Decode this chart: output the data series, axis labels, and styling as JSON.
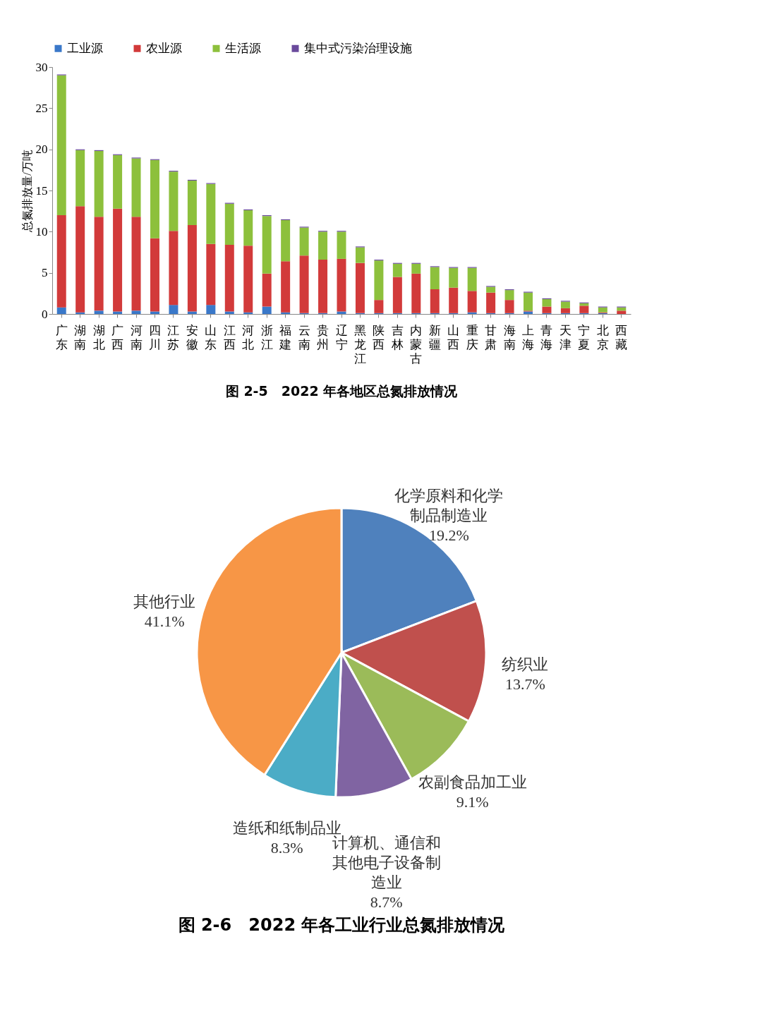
{
  "chart_data": [
    {
      "type": "bar",
      "title": "图 2-5　2022 年各地区总氮排放情况",
      "ylabel": "总氮排放量/万吨",
      "categories": [
        "广东",
        "湖南",
        "湖北",
        "广西",
        "河南",
        "四川",
        "江苏",
        "安徽",
        "山东",
        "江西",
        "河北",
        "浙江",
        "福建",
        "云南",
        "贵州",
        "辽宁",
        "黑龙江",
        "陕西",
        "吉林",
        "内蒙古",
        "新疆",
        "山西",
        "重庆",
        "甘肃",
        "海南",
        "上海",
        "青海",
        "天津",
        "宁夏",
        "北京",
        "西藏"
      ],
      "stacked": true,
      "legend": "top",
      "grid": false,
      "ylim": [
        0,
        30
      ],
      "yticks": [
        0,
        5,
        10,
        15,
        20,
        25,
        30
      ],
      "series": [
        {
          "name": "工业源",
          "color": "#3a78c9",
          "values": [
            0.8,
            0.2,
            0.4,
            0.3,
            0.4,
            0.3,
            1.1,
            0.3,
            1.1,
            0.3,
            0.2,
            0.9,
            0.2,
            0.1,
            0.1,
            0.3,
            0.1,
            0.1,
            0.1,
            0.1,
            0.1,
            0.1,
            0.2,
            0.1,
            0.1,
            0.3,
            0.1,
            0.1,
            0.1,
            0.1,
            0.0
          ]
        },
        {
          "name": "农业源",
          "color": "#d23a3a",
          "values": [
            11.2,
            12.9,
            11.4,
            12.5,
            11.4,
            8.9,
            9.0,
            10.5,
            7.4,
            8.1,
            8.1,
            4.0,
            6.2,
            7.0,
            6.5,
            6.4,
            6.1,
            1.6,
            4.4,
            4.8,
            2.9,
            3.1,
            2.6,
            2.5,
            1.6,
            0.1,
            0.8,
            0.6,
            0.9,
            0.1,
            0.4
          ]
        },
        {
          "name": "生活源",
          "color": "#8dc03c",
          "values": [
            17.0,
            6.8,
            8.0,
            6.5,
            7.1,
            9.5,
            7.2,
            5.4,
            7.3,
            5.0,
            4.3,
            7.0,
            5.0,
            3.4,
            3.4,
            3.3,
            1.9,
            4.8,
            1.6,
            1.2,
            2.7,
            2.4,
            2.8,
            0.7,
            1.2,
            2.2,
            0.9,
            0.8,
            0.3,
            0.6,
            0.4
          ]
        },
        {
          "name": "集中式污染治理设施",
          "color": "#6a4a9c",
          "values": [
            0.1,
            0.1,
            0.1,
            0.1,
            0.1,
            0.1,
            0.1,
            0.1,
            0.1,
            0.1,
            0.1,
            0.1,
            0.1,
            0.1,
            0.1,
            0.1,
            0.1,
            0.1,
            0.1,
            0.1,
            0.1,
            0.1,
            0.1,
            0.1,
            0.1,
            0.1,
            0.1,
            0.1,
            0.1,
            0.1,
            0.1
          ]
        }
      ]
    },
    {
      "type": "pie",
      "title": "图 2-6　2022 年各工业行业总氮排放情况",
      "categories": [
        "化学原料和化学制品制造业",
        "纺织业",
        "农副食品加工业",
        "计算机、通信和其他电子设备制造业",
        "造纸和纸制品业",
        "其他行业"
      ],
      "values": [
        19.2,
        13.7,
        9.1,
        8.7,
        8.3,
        41.1
      ],
      "value_labels": [
        "19.2%",
        "13.7%",
        "9.1%",
        "8.7%",
        "8.3%",
        "41.1%"
      ],
      "colors": [
        "#4f81bd",
        "#c0504d",
        "#9bbb59",
        "#8064a2",
        "#4bacc6",
        "#f79646"
      ]
    }
  ]
}
